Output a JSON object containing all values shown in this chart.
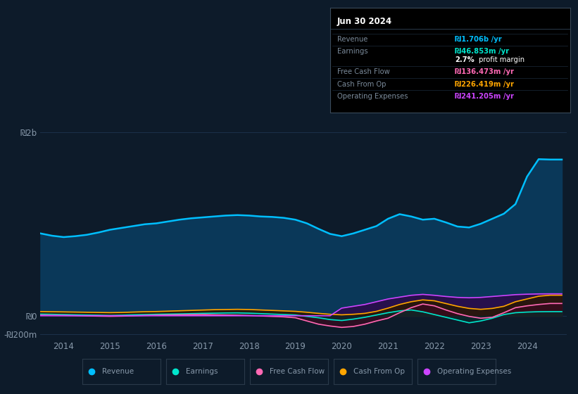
{
  "bg_color": "#0d1b2a",
  "plot_bg_color": "#0d1b2a",
  "grid_color": "#1e3550",
  "text_color": "#8899aa",
  "title_color": "#ffffff",
  "ylim": [
    -250,
    2200
  ],
  "xlim": [
    2013.5,
    2024.85
  ],
  "ytick_positions": [
    -200,
    0,
    2000
  ],
  "ytick_labels": [
    "-₪200m",
    "₪0",
    "₪2b"
  ],
  "xticks": [
    2014,
    2015,
    2016,
    2017,
    2018,
    2019,
    2020,
    2021,
    2022,
    2023,
    2024
  ],
  "xtick_labels": [
    "2014",
    "2015",
    "2016",
    "2017",
    "2018",
    "2019",
    "2020",
    "2021",
    "2022",
    "2023",
    "2024"
  ],
  "revenue_color": "#00bfff",
  "earnings_color": "#00e5cc",
  "fcf_color": "#ff69b4",
  "cashfromop_color": "#ffa500",
  "opex_color": "#cc44ff",
  "revenue_fill_alpha": 0.9,
  "revenue_fill_color": "#0a3a5c",
  "years": [
    2013.5,
    2013.75,
    2014.0,
    2014.25,
    2014.5,
    2014.75,
    2015.0,
    2015.25,
    2015.5,
    2015.75,
    2016.0,
    2016.25,
    2016.5,
    2016.75,
    2017.0,
    2017.25,
    2017.5,
    2017.75,
    2018.0,
    2018.25,
    2018.5,
    2018.75,
    2019.0,
    2019.25,
    2019.5,
    2019.75,
    2020.0,
    2020.25,
    2020.5,
    2020.75,
    2021.0,
    2021.25,
    2021.5,
    2021.75,
    2022.0,
    2022.25,
    2022.5,
    2022.75,
    2023.0,
    2023.25,
    2023.5,
    2023.75,
    2024.0,
    2024.25,
    2024.5,
    2024.75
  ],
  "revenue": [
    900,
    875,
    860,
    870,
    885,
    910,
    940,
    960,
    980,
    1000,
    1010,
    1030,
    1050,
    1065,
    1075,
    1085,
    1095,
    1100,
    1095,
    1085,
    1080,
    1070,
    1050,
    1010,
    950,
    895,
    870,
    900,
    940,
    980,
    1060,
    1110,
    1085,
    1050,
    1060,
    1020,
    975,
    965,
    1005,
    1060,
    1115,
    1220,
    1520,
    1710,
    1706,
    1706
  ],
  "earnings": [
    20,
    18,
    15,
    12,
    10,
    8,
    5,
    8,
    12,
    15,
    18,
    20,
    22,
    25,
    28,
    30,
    32,
    33,
    30,
    25,
    20,
    15,
    10,
    -5,
    -20,
    -40,
    -50,
    -35,
    -15,
    10,
    35,
    55,
    65,
    45,
    15,
    -15,
    -45,
    -75,
    -55,
    -25,
    15,
    35,
    42,
    46,
    47,
    47
  ],
  "free_cash_flow": [
    8,
    6,
    5,
    3,
    0,
    -2,
    -4,
    -2,
    1,
    5,
    8,
    10,
    12,
    14,
    15,
    12,
    10,
    8,
    5,
    0,
    -5,
    -10,
    -20,
    -55,
    -90,
    -110,
    -125,
    -115,
    -90,
    -55,
    -25,
    35,
    90,
    130,
    110,
    65,
    25,
    -5,
    -25,
    -15,
    35,
    90,
    110,
    125,
    136,
    136
  ],
  "cash_from_op": [
    48,
    46,
    44,
    42,
    40,
    38,
    36,
    38,
    42,
    46,
    48,
    52,
    56,
    60,
    64,
    68,
    70,
    72,
    70,
    65,
    60,
    55,
    50,
    40,
    28,
    18,
    12,
    18,
    28,
    50,
    85,
    125,
    155,
    175,
    165,
    135,
    105,
    82,
    72,
    82,
    105,
    155,
    185,
    215,
    226,
    226
  ],
  "operating_expenses": [
    2,
    2,
    2,
    2,
    2,
    2,
    2,
    2,
    2,
    2,
    2,
    2,
    2,
    2,
    2,
    2,
    2,
    2,
    2,
    2,
    2,
    2,
    2,
    2,
    2,
    2,
    85,
    105,
    125,
    155,
    185,
    205,
    225,
    235,
    225,
    212,
    202,
    198,
    202,
    212,
    222,
    232,
    237,
    240,
    241,
    241
  ],
  "tooltip": {
    "title": "Jun 30 2024",
    "rows": [
      {
        "label": "Revenue",
        "value": "₪1.706b /yr",
        "vcolor": "#00bfff"
      },
      {
        "label": "Earnings",
        "value": "₪46.853m /yr",
        "vcolor": "#00e5cc"
      },
      {
        "label": "",
        "value": "2.7% profit margin",
        "vcolor": "#ffffff"
      },
      {
        "label": "Free Cash Flow",
        "value": "₪136.473m /yr",
        "vcolor": "#ff69b4"
      },
      {
        "label": "Cash From Op",
        "value": "₪226.419m /yr",
        "vcolor": "#ffa500"
      },
      {
        "label": "Operating Expenses",
        "value": "₪241.205m /yr",
        "vcolor": "#cc44ff"
      }
    ]
  },
  "legend_items": [
    {
      "label": "Revenue",
      "color": "#00bfff"
    },
    {
      "label": "Earnings",
      "color": "#00e5cc"
    },
    {
      "label": "Free Cash Flow",
      "color": "#ff69b4"
    },
    {
      "label": "Cash From Op",
      "color": "#ffa500"
    },
    {
      "label": "Operating Expenses",
      "color": "#cc44ff"
    }
  ]
}
